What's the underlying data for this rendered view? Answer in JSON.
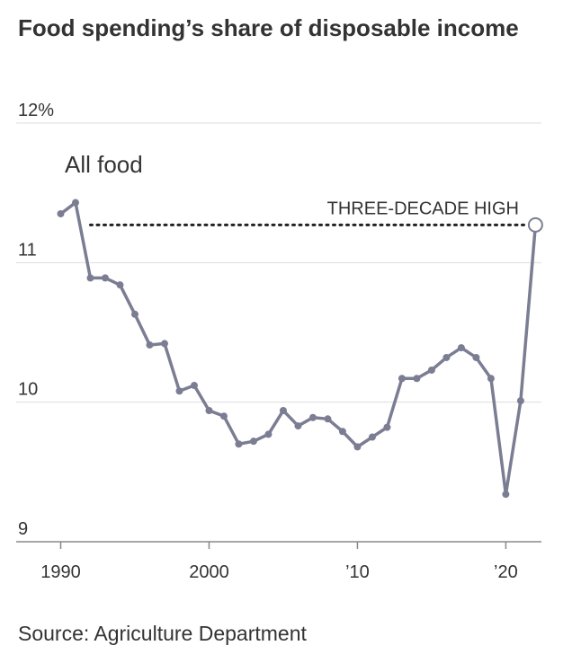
{
  "chart_data": {
    "type": "line",
    "title": "Food spending’s share of disposable income",
    "source": "Source: Agriculture Department",
    "annotation": "THREE-DECADE HIGH",
    "x": [
      1990,
      1991,
      1992,
      1993,
      1994,
      1995,
      1996,
      1997,
      1998,
      1999,
      2000,
      2001,
      2002,
      2003,
      2004,
      2005,
      2006,
      2007,
      2008,
      2009,
      2010,
      2011,
      2012,
      2013,
      2014,
      2015,
      2016,
      2017,
      2018,
      2019,
      2020,
      2021,
      2022
    ],
    "series": [
      {
        "name": "All food",
        "color": "#7b7d93",
        "values": [
          11.35,
          11.43,
          10.89,
          10.89,
          10.84,
          10.63,
          10.41,
          10.42,
          10.08,
          10.12,
          9.94,
          9.9,
          9.7,
          9.72,
          9.77,
          9.94,
          9.83,
          9.89,
          9.88,
          9.79,
          9.68,
          9.75,
          9.82,
          10.17,
          10.17,
          10.23,
          10.32,
          10.39,
          10.32,
          10.17,
          9.34,
          10.01,
          11.27
        ]
      }
    ],
    "xlim": [
      1987,
      2022.4
    ],
    "ylim": [
      9,
      12
    ],
    "xticks": [
      1990,
      2000,
      {
        "value": 2010,
        "label": "’10"
      },
      {
        "value": 2020,
        "label": "’20"
      }
    ],
    "yticks": [
      9,
      10,
      11,
      {
        "value": 12,
        "label": "12%"
      }
    ],
    "grid": true
  }
}
